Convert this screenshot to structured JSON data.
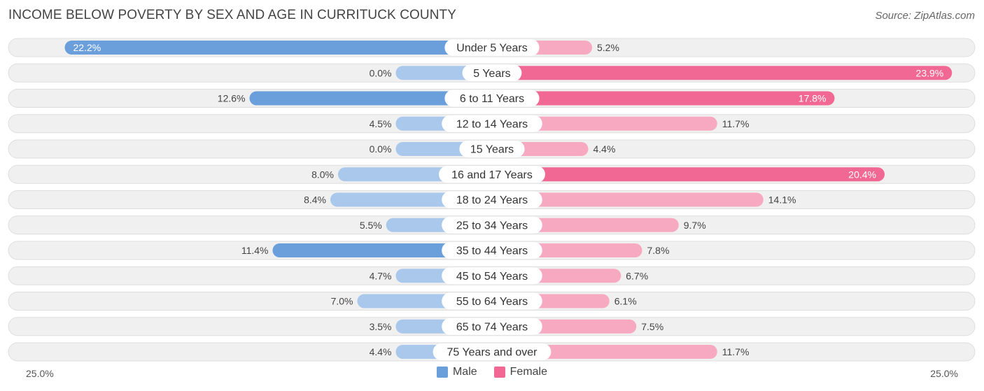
{
  "header": {
    "title": "INCOME BELOW POVERTY BY SEX AND AGE IN CURRITUCK COUNTY",
    "source": "Source: ZipAtlas.com"
  },
  "colors": {
    "male_strong": "#6a9fdc",
    "male_light": "#a9c8ec",
    "female_strong": "#f06893",
    "female_light": "#f7a9c1",
    "track": "#f0f0f0",
    "track_border": "#dedede"
  },
  "legend": {
    "male_label": "Male",
    "female_label": "Female"
  },
  "axis": {
    "left_label": "25.0%",
    "right_label": "25.0%"
  },
  "chart_data": {
    "type": "bar",
    "orientation": "horizontal-diverging",
    "title": "INCOME BELOW POVERTY BY SEX AND AGE IN CURRITUCK COUNTY",
    "xlim": [
      -25,
      25
    ],
    "categories": [
      "Under 5 Years",
      "5 Years",
      "6 to 11 Years",
      "12 to 14 Years",
      "15 Years",
      "16 and 17 Years",
      "18 to 24 Years",
      "25 to 34 Years",
      "35 to 44 Years",
      "45 to 54 Years",
      "55 to 64 Years",
      "65 to 74 Years",
      "75 Years and over"
    ],
    "series": [
      {
        "name": "Male",
        "values": [
          22.2,
          0.0,
          12.6,
          4.5,
          0.0,
          8.0,
          8.4,
          5.5,
          11.4,
          4.7,
          7.0,
          3.5,
          4.4
        ],
        "labels": [
          "22.2%",
          "0.0%",
          "12.6%",
          "4.5%",
          "0.0%",
          "8.0%",
          "8.4%",
          "5.5%",
          "11.4%",
          "4.7%",
          "7.0%",
          "3.5%",
          "4.4%"
        ]
      },
      {
        "name": "Female",
        "values": [
          5.2,
          23.9,
          17.8,
          11.7,
          4.4,
          20.4,
          14.1,
          9.7,
          7.8,
          6.7,
          6.1,
          7.5,
          11.7
        ],
        "labels": [
          "5.2%",
          "23.9%",
          "17.8%",
          "11.7%",
          "4.4%",
          "20.4%",
          "14.1%",
          "9.7%",
          "7.8%",
          "6.7%",
          "6.1%",
          "7.5%",
          "11.7%"
        ]
      }
    ]
  }
}
